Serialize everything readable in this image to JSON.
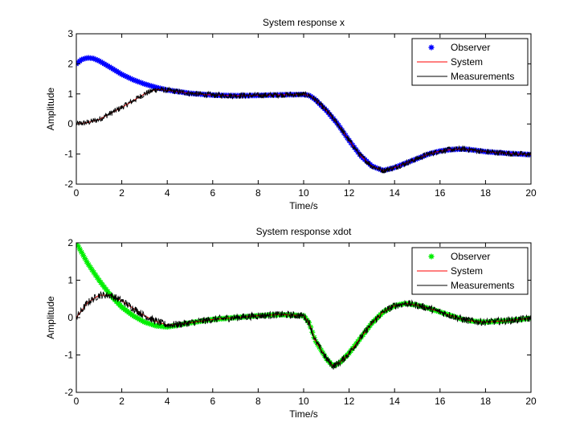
{
  "chart_data": [
    {
      "type": "line",
      "title": "System response x",
      "xlabel": "Time/s",
      "ylabel": "Amplitude",
      "xlim": [
        0,
        20
      ],
      "ylim": [
        -2,
        3
      ],
      "xticks": [
        "0",
        "2",
        "4",
        "6",
        "8",
        "10",
        "12",
        "14",
        "16",
        "18",
        "20"
      ],
      "yticks": [
        "-2",
        "-1",
        "0",
        "1",
        "2",
        "3"
      ],
      "grid": false,
      "legend_position": "top-right",
      "series": [
        {
          "name": "Observer",
          "marker": "*",
          "color": "#0000ff",
          "x": [
            0,
            0.25,
            0.5,
            0.75,
            1,
            1.5,
            2,
            2.5,
            3,
            3.5,
            4,
            5,
            6,
            7,
            8,
            9,
            10,
            10.25,
            10.5,
            11,
            11.5,
            12,
            12.5,
            13,
            13.5,
            14,
            14.5,
            15,
            15.5,
            16,
            16.5,
            17,
            17.5,
            18,
            19,
            20
          ],
          "y": [
            2.0,
            2.15,
            2.2,
            2.18,
            2.1,
            1.88,
            1.65,
            1.47,
            1.33,
            1.22,
            1.13,
            1.02,
            0.96,
            0.94,
            0.95,
            0.97,
            0.98,
            0.95,
            0.82,
            0.45,
            0.0,
            -0.55,
            -1.05,
            -1.4,
            -1.55,
            -1.45,
            -1.3,
            -1.15,
            -1.0,
            -0.9,
            -0.85,
            -0.83,
            -0.87,
            -0.92,
            -0.98,
            -1.02
          ]
        },
        {
          "name": "System",
          "color": "#ff0000",
          "x": [
            0,
            0.5,
            1,
            2,
            3,
            3.5,
            4,
            5,
            6,
            7,
            8,
            9,
            10,
            10.25,
            10.5,
            11,
            11.5,
            12,
            12.5,
            13,
            13.5,
            14,
            14.5,
            15,
            15.5,
            16,
            16.5,
            17,
            17.5,
            18,
            19,
            20
          ],
          "y": [
            0,
            0.05,
            0.15,
            0.55,
            1.0,
            1.15,
            1.12,
            1.02,
            0.96,
            0.94,
            0.95,
            0.97,
            0.98,
            0.95,
            0.82,
            0.45,
            0.0,
            -0.55,
            -1.05,
            -1.4,
            -1.55,
            -1.45,
            -1.3,
            -1.15,
            -1.0,
            -0.9,
            -0.85,
            -0.83,
            -0.87,
            -0.92,
            -0.98,
            -1.02
          ]
        },
        {
          "name": "Measurements",
          "color": "#000000",
          "noise": 0.1,
          "x": [
            0,
            0.5,
            1,
            2,
            3,
            3.5,
            4,
            5,
            6,
            7,
            8,
            9,
            10,
            10.25,
            10.5,
            11,
            11.5,
            12,
            12.5,
            13,
            13.5,
            14,
            14.5,
            15,
            15.5,
            16,
            16.5,
            17,
            17.5,
            18,
            19,
            20
          ],
          "y": [
            0,
            0.05,
            0.15,
            0.55,
            1.0,
            1.15,
            1.12,
            1.02,
            0.96,
            0.94,
            0.95,
            0.97,
            0.98,
            0.95,
            0.82,
            0.45,
            0.0,
            -0.55,
            -1.05,
            -1.4,
            -1.55,
            -1.45,
            -1.3,
            -1.15,
            -1.0,
            -0.9,
            -0.85,
            -0.83,
            -0.87,
            -0.92,
            -0.98,
            -1.02
          ]
        }
      ]
    },
    {
      "type": "line",
      "title": "System response xdot",
      "xlabel": "Time/s",
      "ylabel": "Amplitude",
      "xlim": [
        0,
        20
      ],
      "ylim": [
        -2,
        2
      ],
      "xticks": [
        "0",
        "2",
        "4",
        "6",
        "8",
        "10",
        "12",
        "14",
        "16",
        "18",
        "20"
      ],
      "yticks": [
        "-2",
        "-1",
        "0",
        "1",
        "2"
      ],
      "grid": false,
      "legend_position": "top-right",
      "series": [
        {
          "name": "Observer",
          "marker": "*",
          "color": "#00ee00",
          "x": [
            0,
            0.5,
            1,
            1.5,
            2,
            2.5,
            3,
            3.5,
            4,
            4.5,
            5,
            6,
            7,
            8,
            9,
            10,
            10.25,
            10.5,
            11,
            11.3,
            11.6,
            12,
            12.5,
            13,
            13.5,
            14,
            14.5,
            15,
            15.5,
            16,
            16.5,
            17,
            17.5,
            18,
            19,
            20
          ],
          "y": [
            2.0,
            1.45,
            1.0,
            0.6,
            0.28,
            0.05,
            -0.12,
            -0.22,
            -0.25,
            -0.2,
            -0.14,
            -0.05,
            0.0,
            0.05,
            0.08,
            0.05,
            -0.15,
            -0.6,
            -1.1,
            -1.3,
            -1.2,
            -0.95,
            -0.55,
            -0.15,
            0.15,
            0.32,
            0.38,
            0.33,
            0.25,
            0.15,
            0.05,
            -0.05,
            -0.1,
            -0.12,
            -0.08,
            -0.02
          ]
        },
        {
          "name": "System",
          "color": "#ff0000",
          "x": [
            0,
            0.5,
            1,
            1.5,
            2,
            2.5,
            3,
            3.5,
            4,
            4.5,
            5,
            6,
            7,
            8,
            9,
            10,
            10.25,
            10.5,
            11,
            11.3,
            11.6,
            12,
            12.5,
            13,
            13.5,
            14,
            14.5,
            15,
            15.5,
            16,
            16.5,
            17,
            17.5,
            18,
            19,
            20
          ],
          "y": [
            0,
            0.4,
            0.6,
            0.6,
            0.45,
            0.25,
            0.05,
            -0.1,
            -0.2,
            -0.18,
            -0.14,
            -0.05,
            0.0,
            0.05,
            0.08,
            0.05,
            -0.15,
            -0.6,
            -1.1,
            -1.3,
            -1.2,
            -0.95,
            -0.55,
            -0.15,
            0.15,
            0.32,
            0.38,
            0.33,
            0.25,
            0.15,
            0.05,
            -0.05,
            -0.1,
            -0.12,
            -0.08,
            -0.02
          ]
        },
        {
          "name": "Measurements",
          "color": "#000000",
          "noise": 0.1,
          "x": [
            0,
            0.5,
            1,
            1.5,
            2,
            2.5,
            3,
            3.5,
            4,
            4.5,
            5,
            6,
            7,
            8,
            9,
            10,
            10.25,
            10.5,
            11,
            11.3,
            11.6,
            12,
            12.5,
            13,
            13.5,
            14,
            14.5,
            15,
            15.5,
            16,
            16.5,
            17,
            17.5,
            18,
            19,
            20
          ],
          "y": [
            0,
            0.4,
            0.6,
            0.6,
            0.45,
            0.25,
            0.05,
            -0.1,
            -0.2,
            -0.18,
            -0.14,
            -0.05,
            0.0,
            0.05,
            0.08,
            0.05,
            -0.15,
            -0.6,
            -1.1,
            -1.3,
            -1.2,
            -0.95,
            -0.55,
            -0.15,
            0.15,
            0.32,
            0.38,
            0.33,
            0.25,
            0.15,
            0.05,
            -0.05,
            -0.1,
            -0.12,
            -0.08,
            -0.02
          ]
        }
      ]
    }
  ]
}
